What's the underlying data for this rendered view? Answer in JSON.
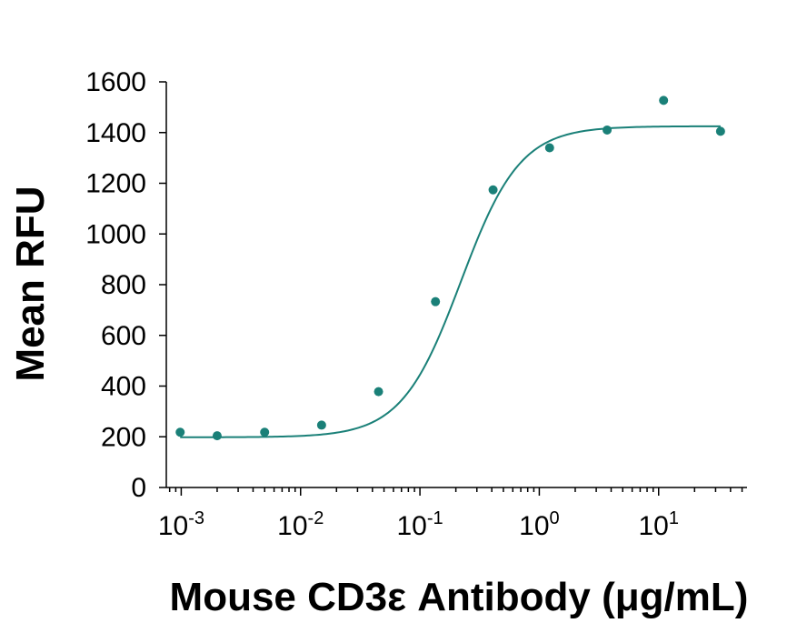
{
  "chart_data": {
    "type": "scatter",
    "title": "",
    "xlabel": "Mouse CD3ε Antibody (μg/mL)",
    "ylabel": "Mean RFU",
    "x_scale": "log",
    "xlim": [
      0.00075,
      55
    ],
    "ylim": [
      0,
      1600
    ],
    "yticks": [
      0,
      200,
      400,
      600,
      800,
      1000,
      1200,
      1400,
      1600
    ],
    "xticks": [
      {
        "value": 0.001,
        "base": "10",
        "exp": "-3"
      },
      {
        "value": 0.01,
        "base": "10",
        "exp": "-2"
      },
      {
        "value": 0.1,
        "base": "10",
        "exp": "-1"
      },
      {
        "value": 1,
        "base": "10",
        "exp": "0"
      },
      {
        "value": 10,
        "base": "10",
        "exp": "1"
      }
    ],
    "grid": false,
    "color": "#1a8078",
    "points": [
      {
        "x": 0.00098,
        "y": 218
      },
      {
        "x": 0.002,
        "y": 204
      },
      {
        "x": 0.005,
        "y": 218
      },
      {
        "x": 0.015,
        "y": 246
      },
      {
        "x": 0.045,
        "y": 378
      },
      {
        "x": 0.135,
        "y": 733
      },
      {
        "x": 0.41,
        "y": 1174
      },
      {
        "x": 1.22,
        "y": 1340
      },
      {
        "x": 3.7,
        "y": 1410
      },
      {
        "x": 11,
        "y": 1527
      },
      {
        "x": 33,
        "y": 1405
      }
    ],
    "fit": {
      "model": "4PL",
      "bottom": 198,
      "top": 1425,
      "ec50": 0.22,
      "hill": 1.75
    }
  }
}
